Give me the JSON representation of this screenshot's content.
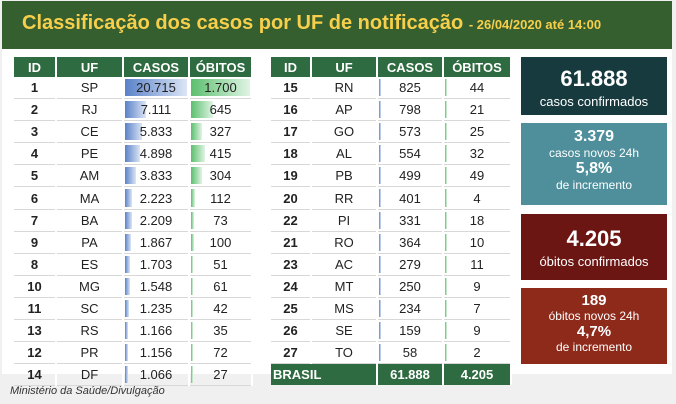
{
  "header": {
    "title": "Classificação dos casos por UF de notificação",
    "subtitle": "- 26/04/2020 até 14:00"
  },
  "columns": {
    "id": "ID",
    "uf": "UF",
    "casos": "CASOS",
    "obitos": "ÓBITOS"
  },
  "left_rows": [
    {
      "id": "1",
      "uf": "SP",
      "casos": "20.715",
      "obitos": "1.700",
      "c": 20715,
      "o": 1700
    },
    {
      "id": "2",
      "uf": "RJ",
      "casos": "7.111",
      "obitos": "645",
      "c": 7111,
      "o": 645
    },
    {
      "id": "3",
      "uf": "CE",
      "casos": "5.833",
      "obitos": "327",
      "c": 5833,
      "o": 327
    },
    {
      "id": "4",
      "uf": "PE",
      "casos": "4.898",
      "obitos": "415",
      "c": 4898,
      "o": 415
    },
    {
      "id": "5",
      "uf": "AM",
      "casos": "3.833",
      "obitos": "304",
      "c": 3833,
      "o": 304
    },
    {
      "id": "6",
      "uf": "MA",
      "casos": "2.223",
      "obitos": "112",
      "c": 2223,
      "o": 112
    },
    {
      "id": "7",
      "uf": "BA",
      "casos": "2.209",
      "obitos": "73",
      "c": 2209,
      "o": 73
    },
    {
      "id": "9",
      "uf": "PA",
      "casos": "1.867",
      "obitos": "100",
      "c": 1867,
      "o": 100
    },
    {
      "id": "8",
      "uf": "ES",
      "casos": "1.703",
      "obitos": "51",
      "c": 1703,
      "o": 51
    },
    {
      "id": "10",
      "uf": "MG",
      "casos": "1.548",
      "obitos": "61",
      "c": 1548,
      "o": 61
    },
    {
      "id": "11",
      "uf": "SC",
      "casos": "1.235",
      "obitos": "42",
      "c": 1235,
      "o": 42
    },
    {
      "id": "13",
      "uf": "RS",
      "casos": "1.166",
      "obitos": "35",
      "c": 1166,
      "o": 35
    },
    {
      "id": "12",
      "uf": "PR",
      "casos": "1.156",
      "obitos": "72",
      "c": 1156,
      "o": 72
    },
    {
      "id": "14",
      "uf": "DF",
      "casos": "1.066",
      "obitos": "27",
      "c": 1066,
      "o": 27
    }
  ],
  "right_rows": [
    {
      "id": "15",
      "uf": "RN",
      "casos": "825",
      "obitos": "44",
      "c": 825,
      "o": 44
    },
    {
      "id": "16",
      "uf": "AP",
      "casos": "798",
      "obitos": "21",
      "c": 798,
      "o": 21
    },
    {
      "id": "17",
      "uf": "GO",
      "casos": "573",
      "obitos": "25",
      "c": 573,
      "o": 25
    },
    {
      "id": "18",
      "uf": "AL",
      "casos": "554",
      "obitos": "32",
      "c": 554,
      "o": 32
    },
    {
      "id": "19",
      "uf": "PB",
      "casos": "499",
      "obitos": "49",
      "c": 499,
      "o": 49
    },
    {
      "id": "20",
      "uf": "RR",
      "casos": "401",
      "obitos": "4",
      "c": 401,
      "o": 4
    },
    {
      "id": "22",
      "uf": "PI",
      "casos": "331",
      "obitos": "18",
      "c": 331,
      "o": 18
    },
    {
      "id": "21",
      "uf": "RO",
      "casos": "364",
      "obitos": "10",
      "c": 364,
      "o": 10
    },
    {
      "id": "23",
      "uf": "AC",
      "casos": "279",
      "obitos": "11",
      "c": 279,
      "o": 11
    },
    {
      "id": "24",
      "uf": "MT",
      "casos": "250",
      "obitos": "9",
      "c": 250,
      "o": 9
    },
    {
      "id": "25",
      "uf": "MS",
      "casos": "234",
      "obitos": "7",
      "c": 234,
      "o": 7
    },
    {
      "id": "26",
      "uf": "SE",
      "casos": "159",
      "obitos": "9",
      "c": 159,
      "o": 9
    },
    {
      "id": "27",
      "uf": "TO",
      "casos": "58",
      "obitos": "2",
      "c": 58,
      "o": 2
    }
  ],
  "total": {
    "label": "BRASIL",
    "casos": "61.888",
    "obitos": "4.205"
  },
  "cards": [
    {
      "big": "61.888",
      "line1": "casos confirmados",
      "bg": "#173a3f"
    },
    {
      "big": "3.379",
      "line1": "casos novos 24h",
      "big2": "5,8%",
      "line2": "de incremento",
      "bg": "#4e8f9b"
    },
    {
      "big": "4.205",
      "line1": "óbitos confirmados",
      "bg": "#6b1612"
    },
    {
      "big": "189",
      "line1": "óbitos novos 24h",
      "big2": "4,7%",
      "line2": "de incremento",
      "bg": "#8e2a1a"
    }
  ],
  "caption": "Ministério da Saúde/Divulgação",
  "colors": {
    "header_bg": "#365f30",
    "title": "#f7cf4a",
    "table_header": "#2e6b40",
    "cases_bar": "#5a82c9",
    "deaths_bar": "#5cbf6e"
  }
}
